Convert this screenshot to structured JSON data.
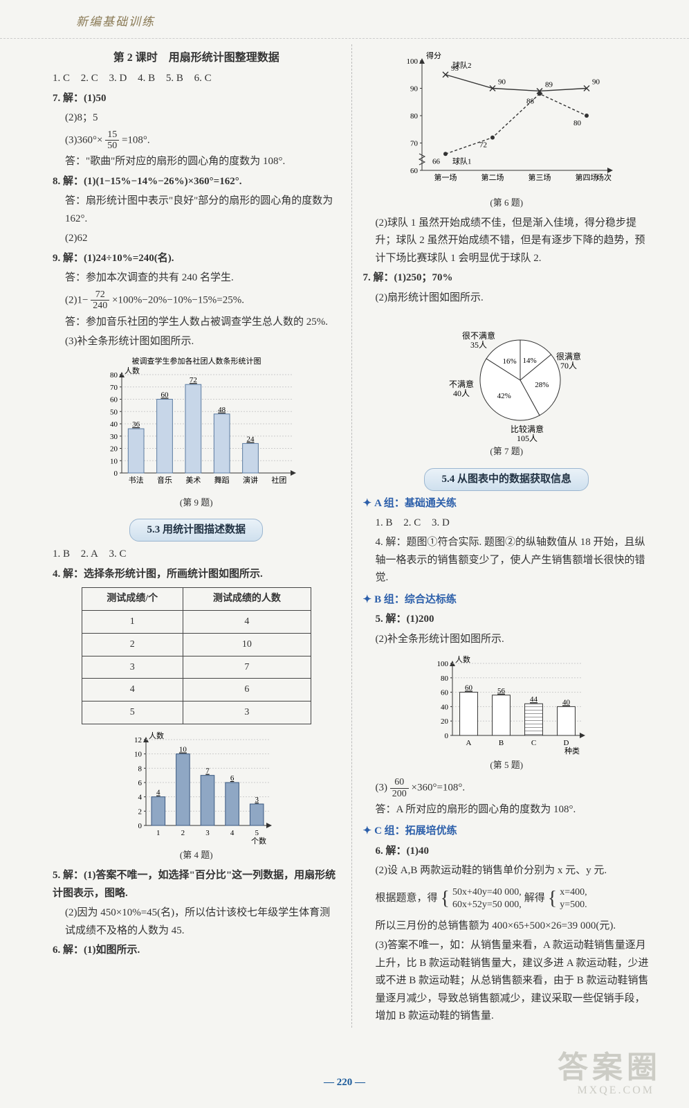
{
  "header": "新编基础训练",
  "page_number": "220",
  "watermark": "答案圈",
  "watermark_sub": "MXQE.COM",
  "left": {
    "lesson_title": "第 2 课时　用扇形统计图整理数据",
    "mc": [
      "1. C",
      "2. C",
      "3. D",
      "4. B",
      "5. B",
      "6. C"
    ],
    "q7_hdr": "7. 解：(1)50",
    "q7_2": "(2)8；5",
    "q7_3a": "(3)360°×",
    "q7_3_frac_n": "15",
    "q7_3_frac_d": "50",
    "q7_3b": "=108°.",
    "q7_ans": "答：\"歌曲\"所对应的扇形的圆心角的度数为 108°.",
    "q8_1": "8. 解：(1)(1−15%−14%−26%)×360°=162°.",
    "q8_ans": "答：扇形统计图中表示\"良好\"部分的扇形的圆心角的度数为 162°.",
    "q8_2": "(2)62",
    "q9_1": "9. 解：(1)24÷10%=240(名).",
    "q9_ans1": "答：参加本次调查的共有 240 名学生.",
    "q9_2a": "(2)1−",
    "q9_2_frac_n": "72",
    "q9_2_frac_d": "240",
    "q9_2b": "×100%−20%−10%−15%=25%.",
    "q9_ans2": "答：参加音乐社团的学生人数占被调查学生总人数的 25%.",
    "q9_3": "(3)补全条形统计图如图所示.",
    "chart9": {
      "title": "被调查学生参加各社团人数条形统计图",
      "ylabel": "人数",
      "categories": [
        "书法",
        "音乐",
        "美术",
        "舞蹈",
        "演讲",
        "社团"
      ],
      "values": [
        36,
        60,
        72,
        48,
        24,
        0
      ],
      "ylim": [
        0,
        80
      ],
      "ytick_step": 10,
      "bar_color": "#c7d6e8",
      "border_color": "#5a7aa0",
      "label_fs": 11
    },
    "chart9_caption": "(第 9 题)",
    "sec53_title": "5.3 用统计图描述数据",
    "sec53_mc": [
      "1. B",
      "2. A",
      "3. C"
    ],
    "q4_intro": "4. 解：选择条形统计图，所画统计图如图所示.",
    "table4": {
      "headers": [
        "测试成绩/个",
        "测试成绩的人数"
      ],
      "rows": [
        [
          "1",
          "4"
        ],
        [
          "2",
          "10"
        ],
        [
          "3",
          "7"
        ],
        [
          "4",
          "6"
        ],
        [
          "5",
          "3"
        ]
      ]
    },
    "chart4": {
      "ylabel": "人数",
      "xlabel": "个数",
      "categories": [
        "1",
        "2",
        "3",
        "4",
        "5"
      ],
      "values": [
        4,
        10,
        7,
        6,
        3
      ],
      "ylim": [
        0,
        12
      ],
      "ytick_step": 2,
      "bar_color": "#8fa7c4",
      "border_color": "#3a5880",
      "label_fs": 11
    },
    "chart4_caption": "(第 4 题)",
    "q5_1": "5. 解：(1)答案不唯一，如选择\"百分比\"这一列数据，用扇形统计图表示，图略.",
    "q5_2": "(2)因为 450×10%=45(名)，所以估计该校七年级学生体育测试成绩不及格的人数为 45.",
    "q6_1": "6. 解：(1)如图所示."
  },
  "right": {
    "chart6": {
      "ylabel": "得分",
      "xlabel": "场次",
      "x_categories": [
        "第一场",
        "第二场",
        "第三场",
        "第四场"
      ],
      "series": [
        {
          "name": "球队1",
          "color": "#333",
          "dash": "4,3",
          "marker": "circle",
          "values": [
            66,
            72,
            88,
            80
          ]
        },
        {
          "name": "球队2",
          "color": "#333",
          "dash": "0",
          "marker": "cross",
          "values": [
            95,
            90,
            89,
            90
          ]
        }
      ],
      "extra_points": [
        {
          "x": 3,
          "y": 87
        },
        {
          "x": 4,
          "y": 80
        }
      ],
      "ylim": [
        60,
        100
      ],
      "yticks": [
        60,
        70,
        80,
        90,
        100
      ],
      "label_fs": 11
    },
    "chart6_caption": "(第 6 题)",
    "q6_2": "(2)球队 1 虽然开始成绩不佳，但是渐入佳境，得分稳步提升；球队 2 虽然开始成绩不错，但是有逐步下降的趋势，预计下场比赛球队 1 会明显优于球队 2.",
    "q7r_1": "7. 解：(1)250；70%",
    "q7r_2": "(2)扇形统计图如图所示.",
    "pie7": {
      "slices": [
        {
          "label": "很满意",
          "sub": "70人",
          "pct": "28%",
          "angle": 100.8,
          "color": "#fff"
        },
        {
          "label": "比较满意",
          "sub": "105人",
          "pct": "42%",
          "angle": 151.2,
          "color": "#fff"
        },
        {
          "label": "不满意",
          "sub": "40人",
          "pct": "16%",
          "angle": 57.6,
          "color": "#fff"
        },
        {
          "label": "很不满意",
          "sub": "35人",
          "pct": "14%",
          "angle": 50.4,
          "color": "#fff"
        }
      ],
      "stroke": "#333"
    },
    "pie7_caption": "(第 7 题)",
    "sec54_title": "5.4 从图表中的数据获取信息",
    "groupA_title": "A 组：基础通关练",
    "groupA_mc": [
      "1. B",
      "2. C",
      "3. D"
    ],
    "groupA_q4": "4. 解：题图①符合实际. 题图②的纵轴数值从 18 开始，且纵轴一格表示的销售额变少了，使人产生销售额增长很快的错觉.",
    "groupB_title": "B 组：综合达标练",
    "q5_1": "5. 解：(1)200",
    "q5_2": "(2)补全条形统计图如图所示.",
    "chart5": {
      "ylabel": "人数",
      "xlabel": "种类",
      "categories": [
        "A",
        "B",
        "C",
        "D"
      ],
      "values": [
        60,
        56,
        44,
        40
      ],
      "ylim": [
        0,
        100
      ],
      "ytick_step": 20,
      "bar_color": "#fff",
      "border_color": "#333",
      "hatched": [
        false,
        false,
        true,
        false
      ],
      "label_fs": 11
    },
    "chart5_caption": "(第 5 题)",
    "q5_3a": "(3)",
    "q5_3_frac_n": "60",
    "q5_3_frac_d": "200",
    "q5_3b": "×360°=108°.",
    "q5_ans": "答：A 所对应的扇形的圆心角的度数为 108°.",
    "groupC_title": "C 组：拓展培优练",
    "q6r_1": "6. 解：(1)40",
    "q6r_2": "(2)设 A,B 两款运动鞋的销售单价分别为 x 元、y 元.",
    "q6r_sys_intro": "根据题意，得",
    "q6r_sys1": "50x+40y=40 000,",
    "q6r_sys2": "60x+52y=50 000,",
    "q6r_sys_mid": "解得",
    "q6r_sol1": "x=400,",
    "q6r_sol2": "y=500.",
    "q6r_3": "所以三月份的总销售额为 400×65+500×26=39 000(元).",
    "q6r_4": "(3)答案不唯一，如：从销售量来看，A 款运动鞋销售量逐月上升，比 B 款运动鞋销售量大，建议多进 A 款运动鞋，少进或不进 B 款运动鞋；从总销售额来看，由于 B 款运动鞋销售量逐月减少，导致总销售额减少，建议采取一些促销手段，增加 B 款运动鞋的销售量."
  }
}
